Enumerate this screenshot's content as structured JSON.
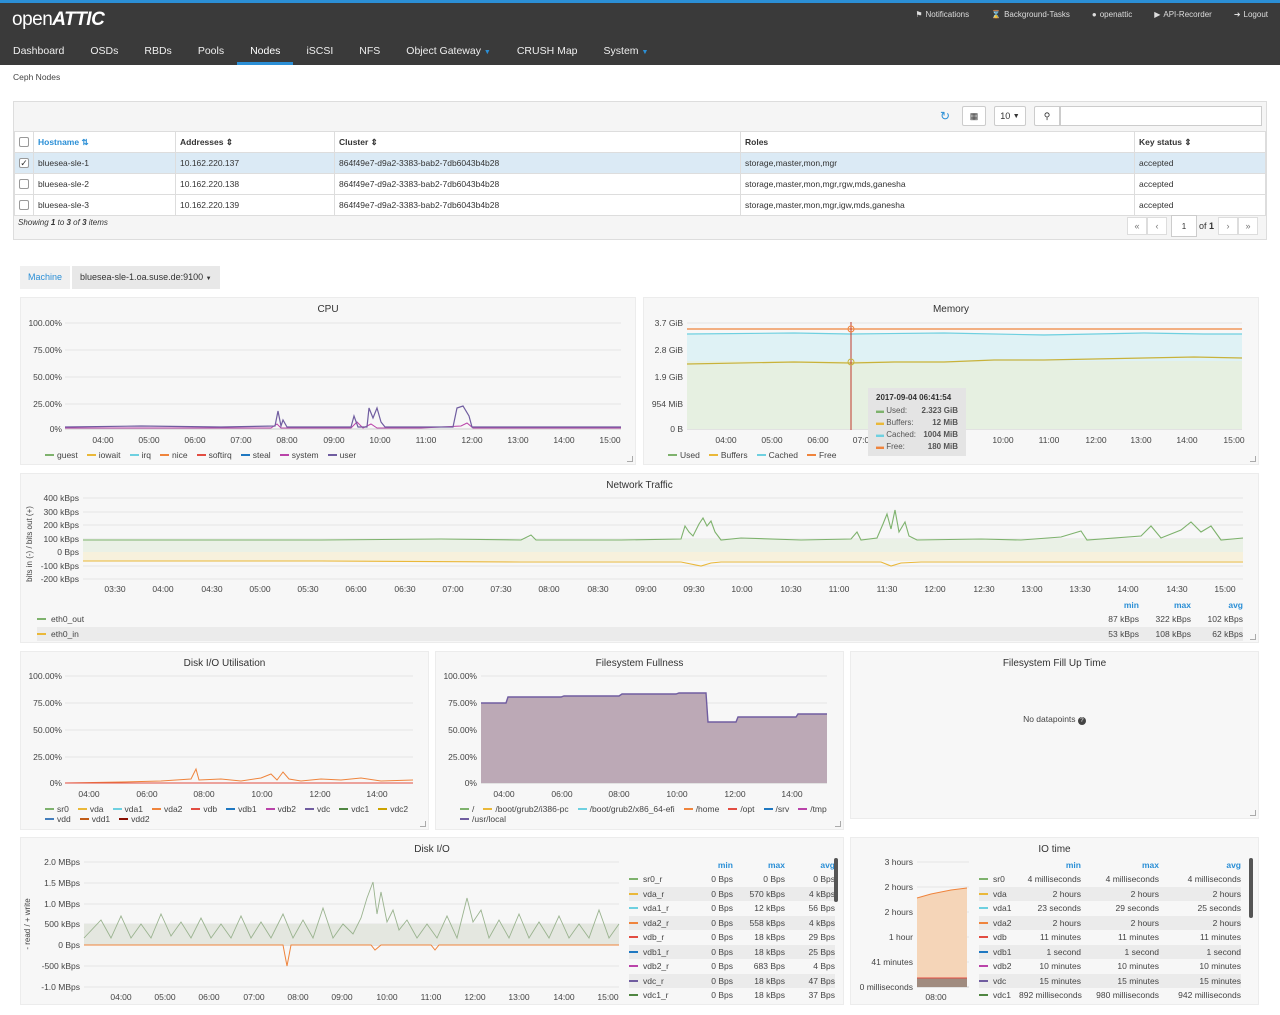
{
  "app": {
    "logo_text": "open",
    "logo_bold": "ATTIC"
  },
  "topbar": {
    "items": [
      {
        "icon": "bell-icon",
        "label": "Notifications"
      },
      {
        "icon": "hourglass-icon",
        "label": "Background-Tasks"
      },
      {
        "icon": "user-icon",
        "label": "openattic"
      },
      {
        "icon": "play-icon",
        "label": "API-Recorder"
      },
      {
        "icon": "logout-icon",
        "label": "Logout"
      }
    ]
  },
  "menu": [
    {
      "label": "Dashboard"
    },
    {
      "label": "OSDs"
    },
    {
      "label": "RBDs"
    },
    {
      "label": "Pools"
    },
    {
      "label": "Nodes",
      "active": true
    },
    {
      "label": "iSCSI"
    },
    {
      "label": "NFS"
    },
    {
      "label": "Object Gateway",
      "caret": true
    },
    {
      "label": "CRUSH Map"
    },
    {
      "label": "System",
      "caret": true
    }
  ],
  "breadcrumb": "Ceph Nodes",
  "table": {
    "page_size": "10",
    "search_placeholder": "",
    "columns": [
      "Hostname",
      "Addresses",
      "Cluster",
      "Roles",
      "Key status"
    ],
    "rows": [
      {
        "checked": true,
        "hostname": "bluesea-sle-1",
        "address": "10.162.220.137",
        "cluster": "864f49e7-d9a2-3383-bab2-7db6043b4b28",
        "roles": "storage,master,mon,mgr",
        "key_status": "accepted"
      },
      {
        "checked": false,
        "hostname": "bluesea-sle-2",
        "address": "10.162.220.138",
        "cluster": "864f49e7-d9a2-3383-bab2-7db6043b4b28",
        "roles": "storage,master,mon,mgr,rgw,mds,ganesha",
        "key_status": "accepted"
      },
      {
        "checked": false,
        "hostname": "bluesea-sle-3",
        "address": "10.162.220.139",
        "cluster": "864f49e7-d9a2-3383-bab2-7db6043b4b28",
        "roles": "storage,master,mon,mgr,igw,mds,ganesha",
        "key_status": "accepted"
      }
    ],
    "showing_prefix": "Showing ",
    "showing_from": "1",
    "showing_to_word": " to ",
    "showing_to": "3",
    "showing_of_word": " of ",
    "showing_total": "3",
    "showing_suffix": " items",
    "pager": {
      "current": "1",
      "of_label": "of",
      "total": "1"
    }
  },
  "machine": {
    "label": "Machine",
    "value": "bluesea-sle-1.oa.suse.de:9100"
  },
  "panels": {
    "cpu": {
      "title": "CPU",
      "yticks": [
        "100.00%",
        "75.00%",
        "50.00%",
        "25.00%",
        "0%"
      ],
      "xticks": [
        "04:00",
        "05:00",
        "06:00",
        "07:00",
        "08:00",
        "09:00",
        "10:00",
        "11:00",
        "12:00",
        "13:00",
        "14:00",
        "15:00"
      ],
      "legend": [
        {
          "name": "guest",
          "color": "#7eb26d"
        },
        {
          "name": "iowait",
          "color": "#eab839"
        },
        {
          "name": "irq",
          "color": "#6ed0e0"
        },
        {
          "name": "nice",
          "color": "#ef843c"
        },
        {
          "name": "softirq",
          "color": "#e24d42"
        },
        {
          "name": "steal",
          "color": "#1f78c1"
        },
        {
          "name": "system",
          "color": "#ba43a9"
        },
        {
          "name": "user",
          "color": "#705da0"
        }
      ]
    },
    "memory": {
      "title": "Memory",
      "yticks": [
        "3.7 GiB",
        "2.8 GiB",
        "1.9 GiB",
        "954 MiB",
        "0 B"
      ],
      "xticks": [
        "04:00",
        "05:00",
        "06:00",
        "07:0",
        "10:00",
        "11:00",
        "12:00",
        "13:00",
        "14:00",
        "15:00"
      ],
      "legend": [
        {
          "name": "Used",
          "color": "#7eb26d"
        },
        {
          "name": "Buffers",
          "color": "#eab839"
        },
        {
          "name": "Cached",
          "color": "#6ed0e0"
        },
        {
          "name": "Free",
          "color": "#ef843c"
        }
      ],
      "tooltip": {
        "time": "2017-09-04 06:41:54",
        "rows": [
          {
            "name": "Used:",
            "value": "2.323 GiB",
            "color": "#7eb26d"
          },
          {
            "name": "Buffers:",
            "value": "12 MiB",
            "color": "#eab839"
          },
          {
            "name": "Cached:",
            "value": "1004 MiB",
            "color": "#6ed0e0"
          },
          {
            "name": "Free:",
            "value": "180 MiB",
            "color": "#ef843c"
          }
        ]
      }
    },
    "network": {
      "title": "Network Traffic",
      "ylabel": "bits in (-) / bits out (+)",
      "yticks": [
        "400 kBps",
        "300 kBps",
        "200 kBps",
        "100 kBps",
        "0 Bps",
        "-100 kBps",
        "-200 kBps"
      ],
      "xticks": [
        "03:30",
        "04:00",
        "04:30",
        "05:00",
        "05:30",
        "06:00",
        "06:30",
        "07:00",
        "07:30",
        "08:00",
        "08:30",
        "09:00",
        "09:30",
        "10:00",
        "10:30",
        "11:00",
        "11:30",
        "12:00",
        "12:30",
        "13:00",
        "13:30",
        "14:00",
        "14:30",
        "15:00"
      ],
      "stat_headers": [
        "min",
        "max",
        "avg"
      ],
      "series": [
        {
          "name": "eth0_out",
          "color": "#7eb26d",
          "min": "87 kBps",
          "max": "322 kBps",
          "avg": "102 kBps"
        },
        {
          "name": "eth0_in",
          "color": "#eab839",
          "min": "53 kBps",
          "max": "108 kBps",
          "avg": "62 kBps"
        }
      ]
    },
    "diskutil": {
      "title": "Disk I/O Utilisation",
      "yticks": [
        "100.00%",
        "75.00%",
        "50.00%",
        "25.00%",
        "0%"
      ],
      "xticks": [
        "04:00",
        "06:00",
        "08:00",
        "10:00",
        "12:00",
        "14:00"
      ],
      "legend": [
        {
          "name": "sr0",
          "color": "#7eb26d"
        },
        {
          "name": "vda",
          "color": "#eab839"
        },
        {
          "name": "vda1",
          "color": "#6ed0e0"
        },
        {
          "name": "vda2",
          "color": "#ef843c"
        },
        {
          "name": "vdb",
          "color": "#e24d42"
        },
        {
          "name": "vdb1",
          "color": "#1f78c1"
        },
        {
          "name": "vdb2",
          "color": "#ba43a9"
        },
        {
          "name": "vdc",
          "color": "#705da0"
        },
        {
          "name": "vdc1",
          "color": "#508642"
        },
        {
          "name": "vdc2",
          "color": "#cca300"
        },
        {
          "name": "vdd",
          "color": "#447ebc"
        },
        {
          "name": "vdd1",
          "color": "#c15c17"
        },
        {
          "name": "vdd2",
          "color": "#890f02"
        }
      ]
    },
    "fsfull": {
      "title": "Filesystem Fullness",
      "yticks": [
        "100.00%",
        "75.00%",
        "50.00%",
        "25.00%",
        "0%"
      ],
      "xticks": [
        "04:00",
        "06:00",
        "08:00",
        "10:00",
        "12:00",
        "14:00"
      ],
      "legend": [
        {
          "name": "/",
          "color": "#7eb26d"
        },
        {
          "name": "/boot/grub2/i386-pc",
          "color": "#eab839"
        },
        {
          "name": "/boot/grub2/x86_64-efi",
          "color": "#6ed0e0"
        },
        {
          "name": "/home",
          "color": "#ef843c"
        },
        {
          "name": "/opt",
          "color": "#e24d42"
        },
        {
          "name": "/srv",
          "color": "#1f78c1"
        },
        {
          "name": "/tmp",
          "color": "#ba43a9"
        },
        {
          "name": "/usr/local",
          "color": "#705da0"
        }
      ],
      "series_pct": [
        {
          "from": "03:30",
          "value": 75
        },
        {
          "from": "04:15",
          "value": 78
        },
        {
          "from": "06:00",
          "value": 80
        },
        {
          "from": "08:00",
          "value": 82
        },
        {
          "from": "10:30",
          "value": 84
        },
        {
          "from": "11:00",
          "value": 56
        },
        {
          "from": "12:00",
          "value": 62
        },
        {
          "from": "13:45",
          "value": 64
        }
      ]
    },
    "fillup": {
      "title": "Filesystem Fill Up Time",
      "nodata": "No datapoints"
    },
    "diskio": {
      "title": "Disk I/O",
      "ylabel": "- read / + write",
      "yticks": [
        "2.0 MBps",
        "1.5 MBps",
        "1.0 MBps",
        "500 kBps",
        "0 Bps",
        "-500 kBps",
        "-1.0 MBps"
      ],
      "xticks": [
        "04:00",
        "05:00",
        "06:00",
        "07:00",
        "08:00",
        "09:00",
        "10:00",
        "11:00",
        "12:00",
        "13:00",
        "14:00",
        "15:00"
      ],
      "stat_headers": [
        "min",
        "max",
        "avg"
      ],
      "series": [
        {
          "name": "sr0_r",
          "color": "#7eb26d",
          "min": "0 Bps",
          "max": "0 Bps",
          "avg": "0 Bps"
        },
        {
          "name": "vda_r",
          "color": "#eab839",
          "min": "0 Bps",
          "max": "570 kBps",
          "avg": "4 kBps"
        },
        {
          "name": "vda1_r",
          "color": "#6ed0e0",
          "min": "0 Bps",
          "max": "12 kBps",
          "avg": "56 Bps"
        },
        {
          "name": "vda2_r",
          "color": "#ef843c",
          "min": "0 Bps",
          "max": "558 kBps",
          "avg": "4 kBps"
        },
        {
          "name": "vdb_r",
          "color": "#e24d42",
          "min": "0 Bps",
          "max": "18 kBps",
          "avg": "29 Bps"
        },
        {
          "name": "vdb1_r",
          "color": "#1f78c1",
          "min": "0 Bps",
          "max": "18 kBps",
          "avg": "25 Bps"
        },
        {
          "name": "vdb2_r",
          "color": "#ba43a9",
          "min": "0 Bps",
          "max": "683 Bps",
          "avg": "4 Bps"
        },
        {
          "name": "vdc_r",
          "color": "#705da0",
          "min": "0 Bps",
          "max": "18 kBps",
          "avg": "47 Bps"
        },
        {
          "name": "vdc1_r",
          "color": "#508642",
          "min": "0 Bps",
          "max": "18 kBps",
          "avg": "37 Bps"
        }
      ]
    },
    "iotime": {
      "title": "IO time",
      "yticks": [
        "3 hours",
        "2 hours",
        "2 hours",
        "1 hour",
        "41 minutes",
        "0 milliseconds"
      ],
      "xticks": [
        "08:00"
      ],
      "stat_headers": [
        "min",
        "max",
        "avg"
      ],
      "series": [
        {
          "name": "sr0",
          "color": "#7eb26d",
          "min": "4 milliseconds",
          "max": "4 milliseconds",
          "avg": "4 milliseconds"
        },
        {
          "name": "vda",
          "color": "#eab839",
          "min": "2 hours",
          "max": "2 hours",
          "avg": "2 hours"
        },
        {
          "name": "vda1",
          "color": "#6ed0e0",
          "min": "23 seconds",
          "max": "29 seconds",
          "avg": "25 seconds"
        },
        {
          "name": "vda2",
          "color": "#ef843c",
          "min": "2 hours",
          "max": "2 hours",
          "avg": "2 hours"
        },
        {
          "name": "vdb",
          "color": "#e24d42",
          "min": "11 minutes",
          "max": "11 minutes",
          "avg": "11 minutes"
        },
        {
          "name": "vdb1",
          "color": "#1f78c1",
          "min": "1 second",
          "max": "1 second",
          "avg": "1 second"
        },
        {
          "name": "vdb2",
          "color": "#ba43a9",
          "min": "10 minutes",
          "max": "10 minutes",
          "avg": "10 minutes"
        },
        {
          "name": "vdc",
          "color": "#705da0",
          "min": "15 minutes",
          "max": "15 minutes",
          "avg": "15 minutes"
        },
        {
          "name": "vdc1",
          "color": "#508642",
          "min": "892 milliseconds",
          "max": "980 milliseconds",
          "avg": "942 milliseconds"
        }
      ]
    }
  }
}
